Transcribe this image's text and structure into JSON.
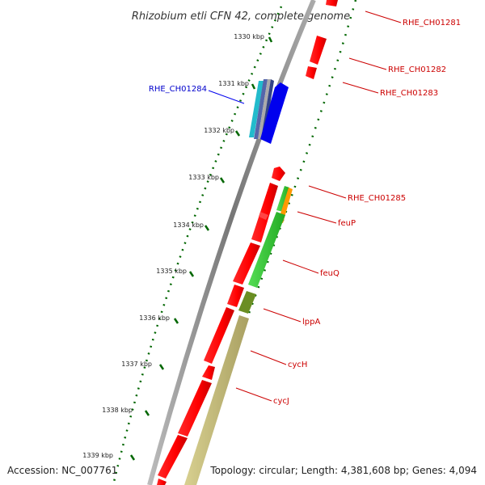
{
  "title": "Rhizobium etli CFN 42, complete genome",
  "footer": {
    "accession": "Accession: NC_007761",
    "summary": "Topology: circular; Length: 4,381,608 bp; Genes: 4,094"
  },
  "ticks": [
    "1330 kbp",
    "1331 kbp",
    "1332 kbp",
    "1333 kbp",
    "1334 kbp",
    "1335 kbp",
    "1336 kbp",
    "1337 kbp",
    "1338 kbp",
    "1339 kbp"
  ],
  "gene_labels": {
    "rhe_ch01281": "RHE_CH01281",
    "rhe_ch01282": "RHE_CH01282",
    "rhe_ch01283": "RHE_CH01283",
    "rhe_ch01284": "RHE_CH01284",
    "rhe_ch01285": "RHE_CH01285",
    "feuP": "feuP",
    "feuQ": "feuQ",
    "lppA": "lppA",
    "cycH": "cycH",
    "cycJ": "cycJ"
  },
  "colors": {
    "cds_red": "#ff0000",
    "highlight_blue": "#0000ee",
    "tick_green": "#006600",
    "label_red": "#cc0000",
    "feu_green": "#44cc44",
    "orange": "#ff9900",
    "olive": "#6b8e23",
    "khaki": "#c8c07a",
    "backbone": "#888888"
  }
}
